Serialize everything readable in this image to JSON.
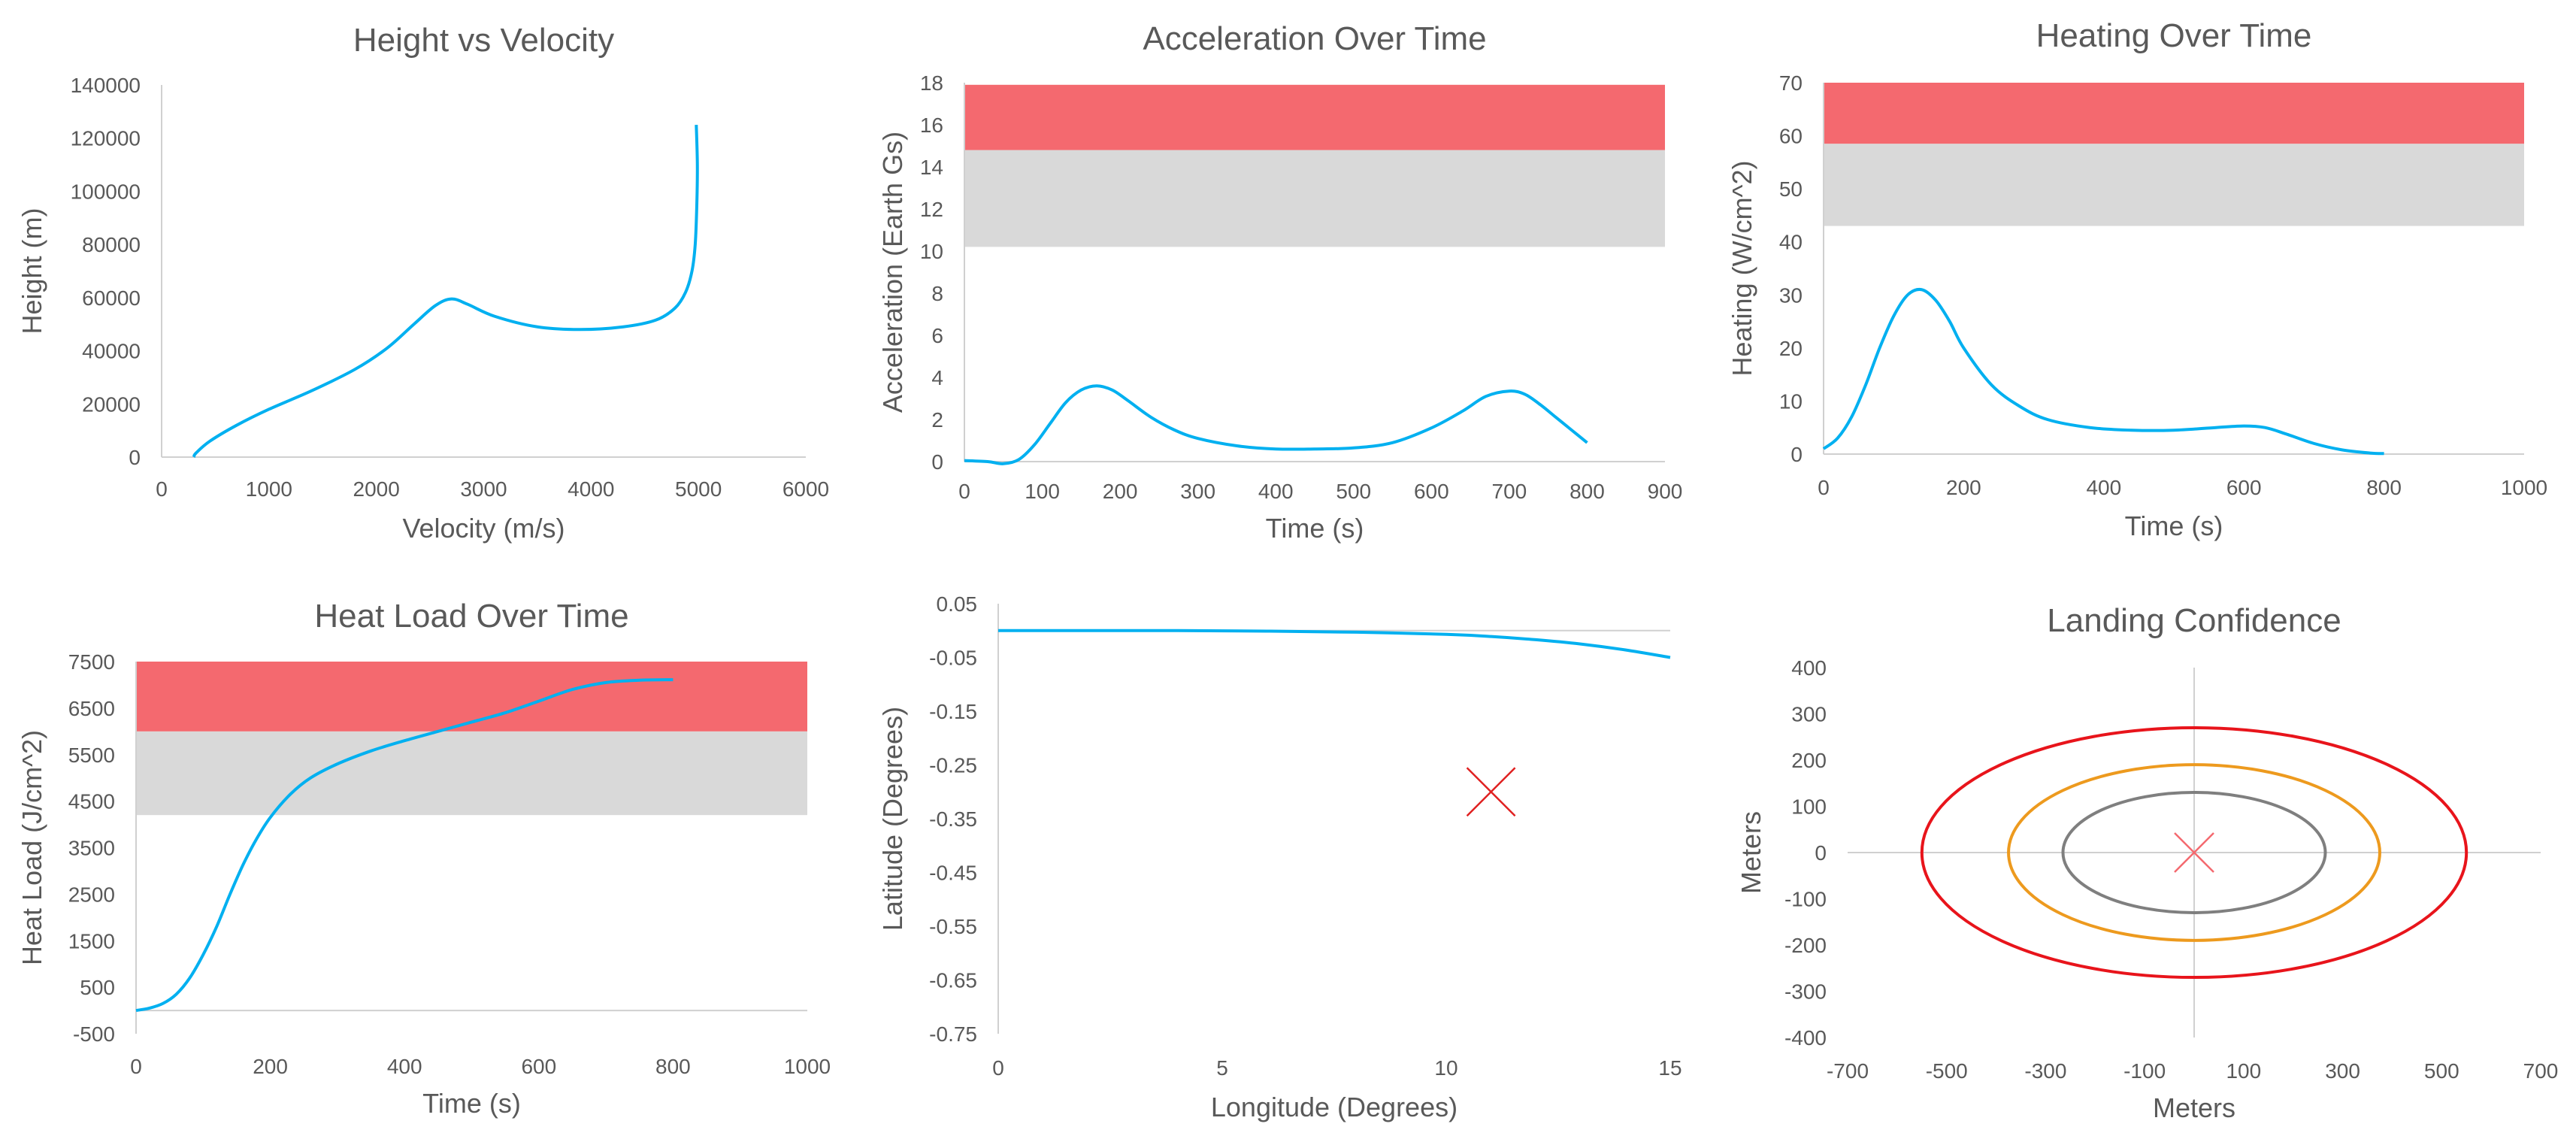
{
  "colors": {
    "series": "#00b0f0",
    "red_band": "#f4696f",
    "gray_band": "#d9d9d9",
    "axis": "#d0d0d0",
    "text": "#595959",
    "marker": "#e02020",
    "ellipse_inner": "#7f7f7f",
    "ellipse_mid": "#ed9a1e",
    "ellipse_outer": "#e8141b"
  },
  "chart_data": [
    {
      "id": "height-velocity",
      "type": "line",
      "title": "Height vs Velocity",
      "xlabel": "Velocity (m/s)",
      "ylabel": "Height (m)",
      "xlim": [
        0,
        6000
      ],
      "ylim": [
        0,
        140000
      ],
      "xticks": [
        "0",
        "1000",
        "2000",
        "3000",
        "4000",
        "5000",
        "6000"
      ],
      "yticks": [
        "0",
        "20000",
        "40000",
        "60000",
        "80000",
        "100000",
        "120000",
        "140000"
      ],
      "bands": [],
      "series": [
        {
          "x": [
            4980,
            4990,
            4985,
            4970,
            4940,
            4880,
            4780,
            4600,
            4300,
            3900,
            3500,
            3100,
            2850,
            2700,
            2550,
            2350,
            2100,
            1800,
            1400,
            1000,
            700,
            450,
            320,
            300
          ],
          "y": [
            125000,
            110000,
            95000,
            80000,
            70000,
            62000,
            56000,
            51500,
            49000,
            48000,
            49000,
            53000,
            57500,
            59500,
            57000,
            50000,
            41000,
            33000,
            25000,
            18000,
            12000,
            6000,
            1500,
            0
          ]
        }
      ]
    },
    {
      "id": "acceleration-time",
      "type": "line",
      "title": "Acceleration Over Time",
      "xlabel": "Time (s)",
      "ylabel": "Acceleration (Earth Gs)",
      "xlim": [
        0,
        900
      ],
      "ylim": [
        0,
        18
      ],
      "xticks": [
        "0",
        "100",
        "200",
        "300",
        "400",
        "500",
        "600",
        "700",
        "800",
        "900"
      ],
      "yticks": [
        "0",
        "2",
        "4",
        "6",
        "8",
        "10",
        "12",
        "14",
        "16",
        "18"
      ],
      "bands": [
        {
          "from": 10.2,
          "to": 14.8,
          "color": "gray"
        },
        {
          "from": 14.8,
          "to": 17.9,
          "color": "red"
        }
      ],
      "series": [
        {
          "x": [
            0,
            30,
            50,
            70,
            90,
            110,
            130,
            150,
            170,
            190,
            210,
            240,
            270,
            300,
            350,
            400,
            450,
            500,
            550,
            600,
            640,
            670,
            700,
            720,
            740,
            760,
            780,
            800
          ],
          "y": [
            0.05,
            0.0,
            -0.1,
            0.1,
            0.8,
            1.8,
            2.8,
            3.4,
            3.6,
            3.4,
            2.9,
            2.1,
            1.5,
            1.1,
            0.75,
            0.6,
            0.6,
            0.65,
            0.9,
            1.6,
            2.4,
            3.1,
            3.35,
            3.2,
            2.7,
            2.1,
            1.5,
            0.9
          ]
        }
      ]
    },
    {
      "id": "heating-time",
      "type": "line",
      "title": "Heating Over Time",
      "xlabel": "Time (s)",
      "ylabel": "Heating (W/cm^2)",
      "xlim": [
        0,
        1000
      ],
      "ylim": [
        0,
        70
      ],
      "xticks": [
        "0",
        "200",
        "400",
        "600",
        "800",
        "1000"
      ],
      "yticks": [
        "0",
        "10",
        "20",
        "30",
        "40",
        "50",
        "60",
        "70"
      ],
      "bands": [
        {
          "from": 43,
          "to": 58.5,
          "color": "gray"
        },
        {
          "from": 58.5,
          "to": 70,
          "color": "red"
        }
      ],
      "series": [
        {
          "x": [
            0,
            20,
            40,
            60,
            80,
            100,
            120,
            140,
            160,
            180,
            200,
            240,
            280,
            320,
            380,
            440,
            500,
            560,
            600,
            630,
            660,
            700,
            740,
            780,
            800
          ],
          "y": [
            1,
            3,
            7,
            13,
            20,
            26,
            30,
            31,
            29,
            25,
            20,
            13,
            9,
            6.5,
            5,
            4.5,
            4.5,
            5,
            5.3,
            5,
            3.8,
            2,
            0.8,
            0.2,
            0.1
          ]
        }
      ]
    },
    {
      "id": "heatload-time",
      "type": "line",
      "title": "Heat Load Over Time",
      "xlabel": "Time (s)",
      "ylabel": "Heat Load (J/cm^2)",
      "xlim": [
        0,
        1000
      ],
      "ylim": [
        -500,
        7500
      ],
      "xticks": [
        "0",
        "200",
        "400",
        "600",
        "800",
        "1000"
      ],
      "yticks": [
        "-500",
        "500",
        "1500",
        "2500",
        "3500",
        "4500",
        "5500",
        "6500",
        "7500"
      ],
      "bands": [
        {
          "from": 4200,
          "to": 6000,
          "color": "gray"
        },
        {
          "from": 6000,
          "to": 7500,
          "color": "red"
        }
      ],
      "series": [
        {
          "x": [
            0,
            20,
            40,
            60,
            80,
            100,
            120,
            140,
            160,
            180,
            200,
            230,
            260,
            300,
            350,
            400,
            450,
            500,
            550,
            600,
            650,
            700,
            750,
            800
          ],
          "y": [
            0,
            50,
            150,
            350,
            700,
            1200,
            1800,
            2500,
            3150,
            3700,
            4150,
            4650,
            5000,
            5300,
            5580,
            5800,
            6000,
            6200,
            6400,
            6650,
            6900,
            7050,
            7100,
            7110
          ]
        }
      ]
    },
    {
      "id": "lat-lon",
      "type": "line",
      "title": "",
      "xlabel": "Longitude (Degrees)",
      "ylabel": "Latitude (Degrees)",
      "xlim": [
        0,
        15
      ],
      "ylim": [
        -0.75,
        0.05
      ],
      "xticks": [
        "0",
        "5",
        "10",
        "15"
      ],
      "yticks": [
        "0.05",
        "-0.05",
        "-0.15",
        "-0.25",
        "-0.35",
        "-0.45",
        "-0.55",
        "-0.65",
        "-0.75"
      ],
      "bands": [],
      "series": [
        {
          "x": [
            0,
            2,
            4,
            6,
            8,
            10,
            11,
            12,
            13,
            14,
            15
          ],
          "y": [
            0.0,
            0.0,
            0.0,
            -0.001,
            -0.003,
            -0.007,
            -0.011,
            -0.017,
            -0.025,
            -0.036,
            -0.05
          ]
        }
      ],
      "marker": {
        "x": 11,
        "y": -0.3
      }
    },
    {
      "id": "landing-confidence",
      "type": "scatter",
      "title": "Landing Confidence",
      "xlabel": "Meters",
      "ylabel": "Meters",
      "xlim": [
        -700,
        700
      ],
      "ylim": [
        -400,
        400
      ],
      "xticks": [
        "-700",
        "-500",
        "-300",
        "-100",
        "100",
        "300",
        "500",
        "700"
      ],
      "yticks": [
        "-400",
        "-300",
        "-200",
        "-100",
        "0",
        "100",
        "200",
        "300",
        "400"
      ],
      "ellipses": [
        {
          "rx": 265,
          "ry": 130,
          "color": "inner"
        },
        {
          "rx": 375,
          "ry": 190,
          "color": "mid"
        },
        {
          "rx": 550,
          "ry": 270,
          "color": "outer"
        }
      ],
      "marker": {
        "x": 0,
        "y": 0
      }
    }
  ]
}
